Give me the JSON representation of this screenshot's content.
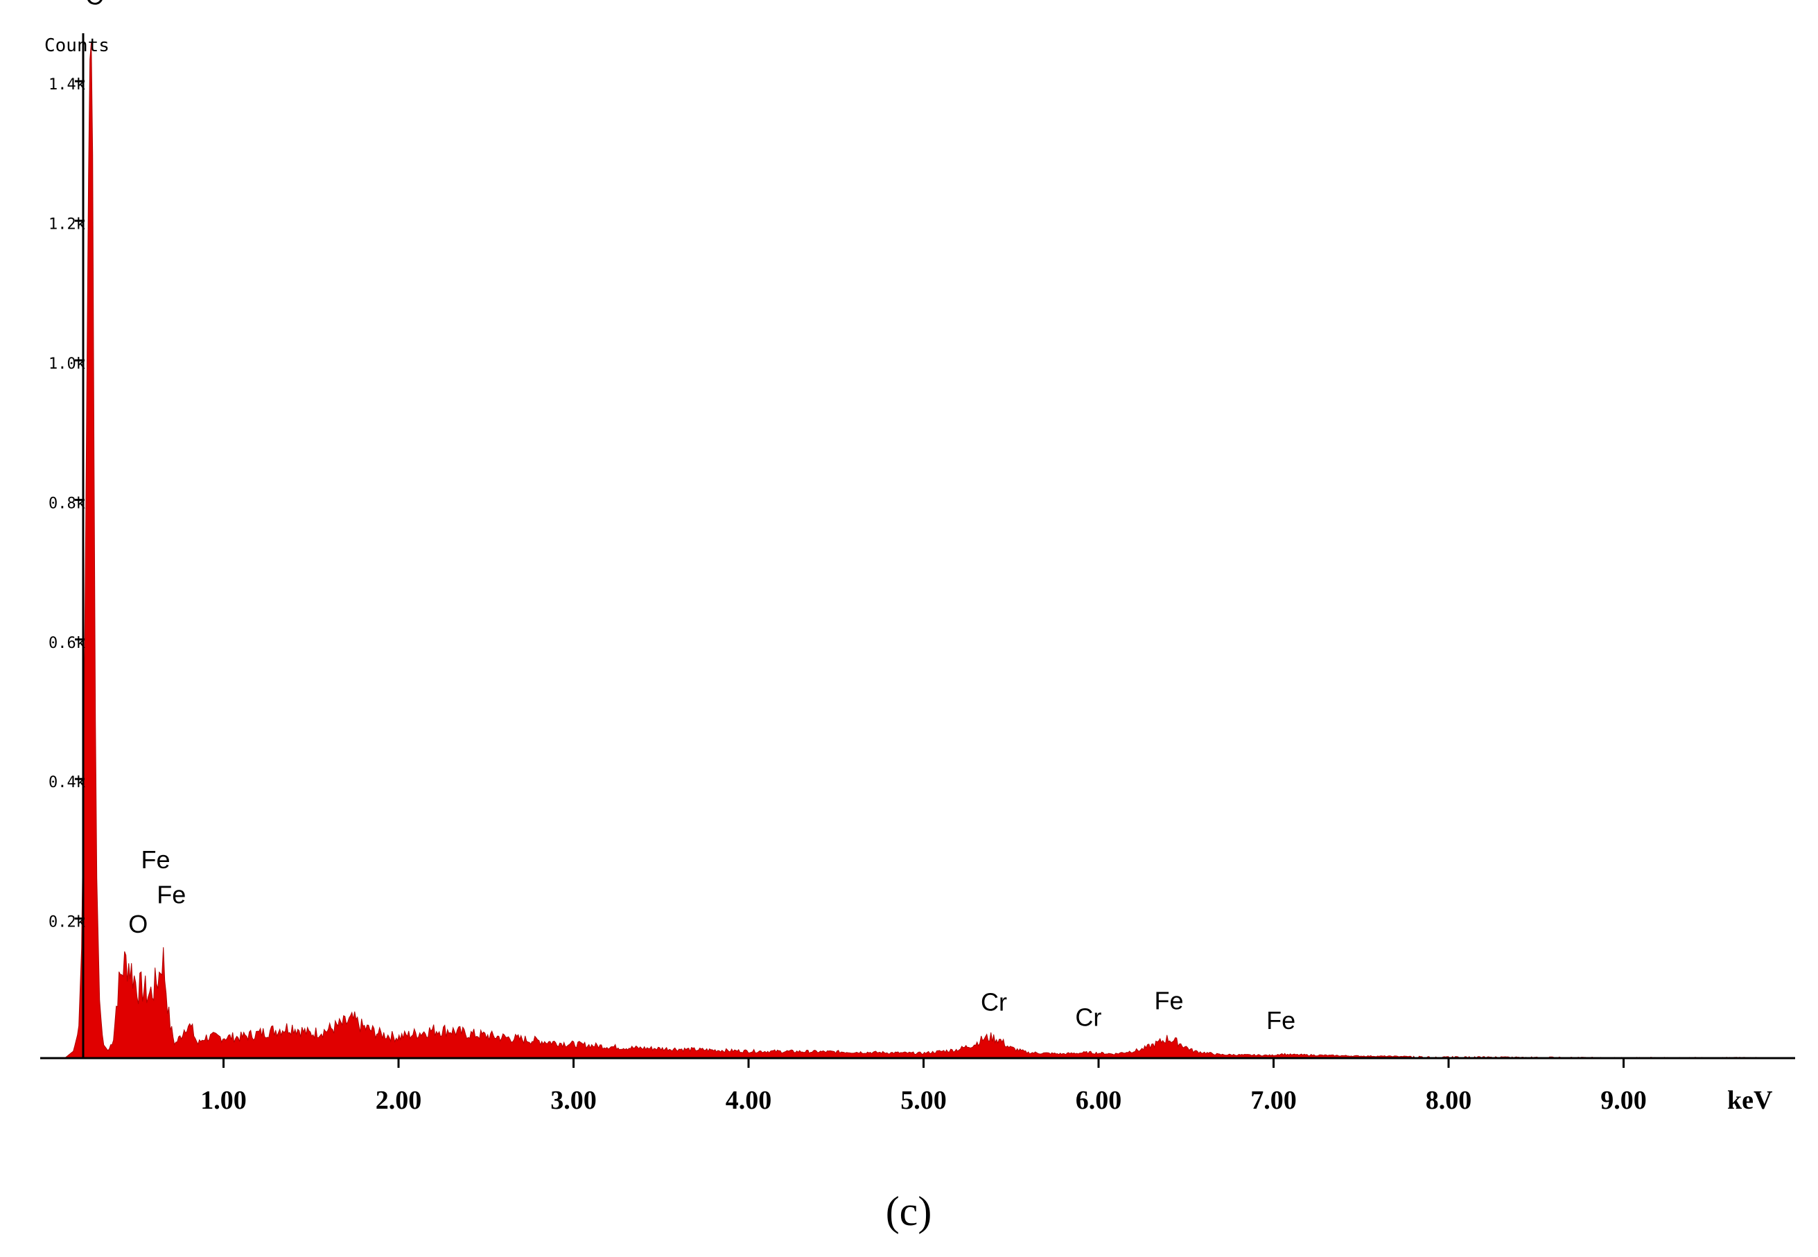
{
  "chart_data": {
    "type": "area",
    "ylabel": "Counts",
    "xunit": "keV",
    "caption": "(c)",
    "xlim": [
      0,
      10.0
    ],
    "ylim": [
      0,
      1.55
    ],
    "x_ticks": [
      1.0,
      2.0,
      3.0,
      4.0,
      5.0,
      6.0,
      7.0,
      8.0,
      9.0
    ],
    "x_tick_labels": [
      "1.00",
      "2.00",
      "3.00",
      "4.00",
      "5.00",
      "6.00",
      "7.00",
      "8.00",
      "9.00"
    ],
    "y_ticks": [
      0.2,
      0.4,
      0.6,
      0.8,
      1.0,
      1.2,
      1.4
    ],
    "y_tick_labels": [
      "0.2k",
      "0.4k",
      "0.6k",
      "0.8k",
      "1.0k",
      "1.2k",
      "1.4k"
    ],
    "fill_color": "#e00000",
    "series": [
      {
        "x": [
          0.0,
          0.1,
          0.15,
          0.18,
          0.2,
          0.22,
          0.24,
          0.25,
          0.26,
          0.27,
          0.28,
          0.3,
          0.32,
          0.35,
          0.38,
          0.4,
          0.43,
          0.46,
          0.49,
          0.52,
          0.55,
          0.58,
          0.61,
          0.64,
          0.66,
          0.68,
          0.7,
          0.73,
          0.76,
          0.8,
          0.83,
          0.86,
          0.9,
          1.0,
          1.1,
          1.2,
          1.3,
          1.4,
          1.5,
          1.6,
          1.7,
          1.75,
          1.8,
          1.9,
          2.0,
          2.1,
          2.2,
          2.3,
          2.4,
          2.6,
          2.8,
          3.0,
          3.3,
          3.6,
          4.0,
          4.5,
          5.0,
          5.2,
          5.3,
          5.35,
          5.4,
          5.45,
          5.5,
          5.6,
          5.8,
          5.95,
          6.1,
          6.25,
          6.35,
          6.4,
          6.45,
          6.55,
          6.7,
          7.0,
          7.05,
          7.1,
          7.5,
          8.0,
          9.0,
          10.0
        ],
        "y": [
          0.0,
          0.0,
          0.01,
          0.04,
          0.18,
          0.75,
          1.38,
          1.5,
          1.3,
          0.75,
          0.3,
          0.08,
          0.02,
          0.01,
          0.03,
          0.09,
          0.13,
          0.14,
          0.12,
          0.1,
          0.1,
          0.09,
          0.1,
          0.12,
          0.15,
          0.1,
          0.05,
          0.02,
          0.03,
          0.05,
          0.04,
          0.02,
          0.03,
          0.03,
          0.03,
          0.035,
          0.04,
          0.045,
          0.035,
          0.04,
          0.05,
          0.055,
          0.045,
          0.035,
          0.03,
          0.035,
          0.04,
          0.04,
          0.035,
          0.03,
          0.025,
          0.02,
          0.015,
          0.013,
          0.01,
          0.009,
          0.007,
          0.012,
          0.02,
          0.028,
          0.03,
          0.025,
          0.015,
          0.008,
          0.006,
          0.008,
          0.006,
          0.012,
          0.022,
          0.028,
          0.024,
          0.01,
          0.005,
          0.004,
          0.006,
          0.005,
          0.003,
          0.002,
          0.001,
          0.001
        ]
      }
    ],
    "peak_labels": [
      {
        "text": "C",
        "x": 0.27,
        "y": 1.5
      },
      {
        "text": "O",
        "x": 0.52,
        "y": 0.17
      },
      {
        "text": "Fe",
        "x": 0.62,
        "y": 0.262
      },
      {
        "text": "Fe",
        "x": 0.71,
        "y": 0.212
      },
      {
        "text": "Cr",
        "x": 5.41,
        "y": 0.058
      },
      {
        "text": "Cr",
        "x": 5.95,
        "y": 0.036
      },
      {
        "text": "Fe",
        "x": 6.41,
        "y": 0.06
      },
      {
        "text": "Fe",
        "x": 7.05,
        "y": 0.032
      }
    ]
  }
}
